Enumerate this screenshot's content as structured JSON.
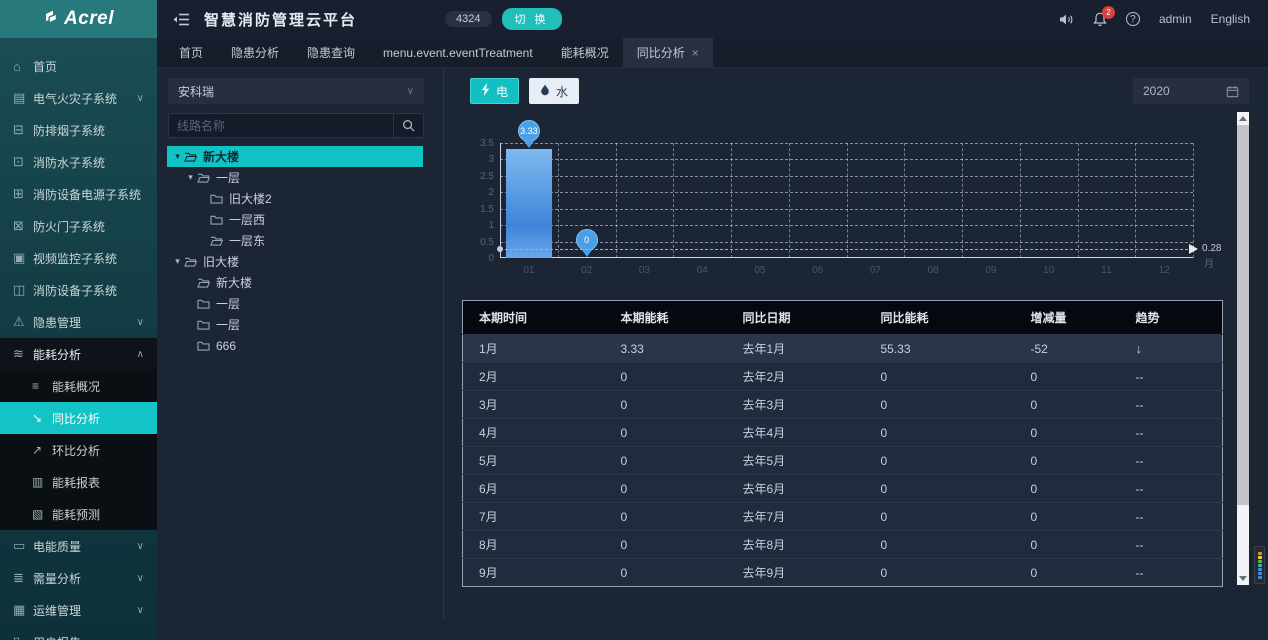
{
  "brand": {
    "name": "Acrel"
  },
  "header": {
    "title": "智慧消防管理云平台",
    "badge": "4324",
    "switch_label": "切 换",
    "notification_count": "2",
    "user": "admin",
    "language": "English",
    "icons": [
      "volume-icon",
      "bell-icon",
      "help-icon"
    ]
  },
  "tabs": [
    {
      "label": "首页",
      "active": false,
      "closable": false
    },
    {
      "label": "隐患分析",
      "active": false,
      "closable": false
    },
    {
      "label": "隐患查询",
      "active": false,
      "closable": false
    },
    {
      "label": "menu.event.eventTreatment",
      "active": false,
      "closable": false
    },
    {
      "label": "能耗概况",
      "active": false,
      "closable": false
    },
    {
      "label": "同比分析",
      "active": true,
      "closable": true
    }
  ],
  "sidebar": {
    "items": [
      {
        "label": "首页",
        "icon": "home-icon"
      },
      {
        "label": "电气火灾子系统",
        "icon": "electric-fire-icon",
        "expand": "down"
      },
      {
        "label": "防排烟子系统",
        "icon": "smoke-control-icon"
      },
      {
        "label": "消防水子系统",
        "icon": "fire-water-icon"
      },
      {
        "label": "消防设备电源子系统",
        "icon": "device-power-icon"
      },
      {
        "label": "防火门子系统",
        "icon": "fire-door-icon"
      },
      {
        "label": "视频监控子系统",
        "icon": "video-monitor-icon"
      },
      {
        "label": "消防设备子系统",
        "icon": "fire-device-icon"
      },
      {
        "label": "隐患管理",
        "icon": "hazard-icon",
        "expand": "down"
      },
      {
        "label": "能耗分析",
        "icon": "energy-icon",
        "expand": "up",
        "open": true,
        "children": [
          {
            "label": "能耗概况",
            "icon": "overview-icon"
          },
          {
            "label": "同比分析",
            "icon": "yoy-icon",
            "active": true
          },
          {
            "label": "环比分析",
            "icon": "mom-icon"
          },
          {
            "label": "能耗报表",
            "icon": "report-icon"
          },
          {
            "label": "能耗预测",
            "icon": "forecast-icon"
          }
        ]
      },
      {
        "label": "电能质量",
        "icon": "power-quality-icon",
        "expand": "down"
      },
      {
        "label": "需量分析",
        "icon": "demand-icon",
        "expand": "down"
      },
      {
        "label": "运维管理",
        "icon": "ops-icon",
        "expand": "down"
      },
      {
        "label": "用户报告",
        "icon": "user-report-icon"
      }
    ]
  },
  "panel": {
    "select_value": "安科瑞",
    "search_placeholder": "线路名称",
    "tree": [
      {
        "label": "新大楼",
        "level": 0,
        "caret": true,
        "folder": "open",
        "selected": true
      },
      {
        "label": "一层",
        "level": 1,
        "caret": true,
        "folder": "open"
      },
      {
        "label": "旧大楼2",
        "level": 2,
        "caret": false,
        "folder": "closed"
      },
      {
        "label": "一层西",
        "level": 2,
        "caret": false,
        "folder": "closed"
      },
      {
        "label": "一层东",
        "level": 2,
        "caret": false,
        "folder": "open"
      },
      {
        "label": "旧大楼",
        "level": 0,
        "caret": true,
        "folder": "open"
      },
      {
        "label": "新大楼",
        "level": 1,
        "caret": false,
        "folder": "open"
      },
      {
        "label": "一层",
        "level": 1,
        "caret": false,
        "folder": "closed"
      },
      {
        "label": "一层",
        "level": 1,
        "caret": false,
        "folder": "closed"
      },
      {
        "label": "666",
        "level": 1,
        "caret": false,
        "folder": "closed"
      }
    ]
  },
  "toolbar": {
    "electric_label": "电",
    "water_label": "水",
    "year": "2020"
  },
  "chart_data": {
    "type": "bar",
    "title": "",
    "categories": [
      "01",
      "02",
      "03",
      "04",
      "05",
      "06",
      "07",
      "08",
      "09",
      "10",
      "11",
      "12"
    ],
    "x_unit": "月",
    "values": [
      3.33,
      0,
      null,
      null,
      null,
      null,
      null,
      null,
      null,
      null,
      null,
      null
    ],
    "point_labels": [
      "3.33",
      "0"
    ],
    "average_line": 0.28,
    "average_label": "0.28",
    "ylim": [
      0,
      3.5
    ],
    "ytick_step": 0.5,
    "grid": "dashed",
    "legend": "none",
    "colors": {
      "bar_top": "#7fb9ef",
      "bar_bottom": "#3e85da",
      "marker": "#4aa0e8",
      "accent": "#14c3c5"
    }
  },
  "table": {
    "headers": [
      "本期时间",
      "本期能耗",
      "同比日期",
      "同比能耗",
      "增减量",
      "趋势"
    ],
    "rows": [
      [
        "1月",
        "3.33",
        "去年1月",
        "55.33",
        "-52",
        "↓"
      ],
      [
        "2月",
        "0",
        "去年2月",
        "0",
        "0",
        "--"
      ],
      [
        "3月",
        "0",
        "去年3月",
        "0",
        "0",
        "--"
      ],
      [
        "4月",
        "0",
        "去年4月",
        "0",
        "0",
        "--"
      ],
      [
        "5月",
        "0",
        "去年5月",
        "0",
        "0",
        "--"
      ],
      [
        "6月",
        "0",
        "去年6月",
        "0",
        "0",
        "--"
      ],
      [
        "7月",
        "0",
        "去年7月",
        "0",
        "0",
        "--"
      ],
      [
        "8月",
        "0",
        "去年8月",
        "0",
        "0",
        "--"
      ],
      [
        "9月",
        "0",
        "去年9月",
        "0",
        "0",
        "--"
      ]
    ]
  },
  "widget_dots": [
    "#e2962e",
    "#e8d43d",
    "#62b946",
    "#2fb6c9",
    "#3d8fe0",
    "#3d8fe0",
    "#3d8fe0"
  ]
}
